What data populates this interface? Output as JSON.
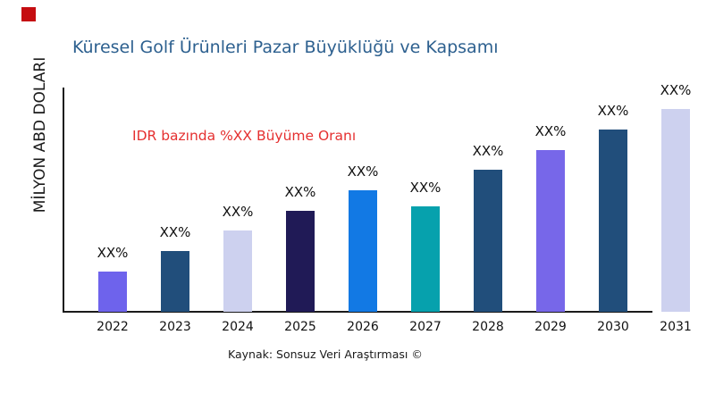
{
  "page": {
    "background": "#ffffff"
  },
  "logo": {
    "color": "#c50d11"
  },
  "title": {
    "text": "Küresel Golf Ürünleri Pazar Büyüklüğü ve Kapsamı",
    "color": "#2d608f"
  },
  "annotation": {
    "text": "IDR bazında %XX Büyüme Oranı",
    "color": "#e53030"
  },
  "source": "Kaynak: Sonsuz Veri Araştırması ©",
  "axis_color": "#1a1a1a",
  "chart_data": {
    "type": "bar",
    "title": "Küresel Golf Ürünleri Pazar Büyüklüğü ve Kapsamı",
    "xlabel": "",
    "ylabel": "MİLYON ABD DOLARI",
    "categories": [
      "2022",
      "2023",
      "2024",
      "2025",
      "2026",
      "2027",
      "2028",
      "2029",
      "2030",
      "2031"
    ],
    "values": [
      45,
      68,
      91,
      113,
      136,
      118,
      159,
      181,
      204,
      227
    ],
    "values_note": "relative bar heights; actual figures are masked as XX% in the chart",
    "bar_labels": [
      "XX%",
      "XX%",
      "XX%",
      "XX%",
      "XX%",
      "XX%",
      "XX%",
      "XX%",
      "XX%",
      "XX%"
    ],
    "bar_colors": [
      "#6e63ec",
      "#214e7b",
      "#cdd1ef",
      "#201a56",
      "#1279e4",
      "#06a1ad",
      "#214e7b",
      "#7767e9",
      "#214e7b",
      "#cdd1ef"
    ],
    "ylim": [
      0,
      250
    ],
    "grid": false,
    "legend": false
  }
}
